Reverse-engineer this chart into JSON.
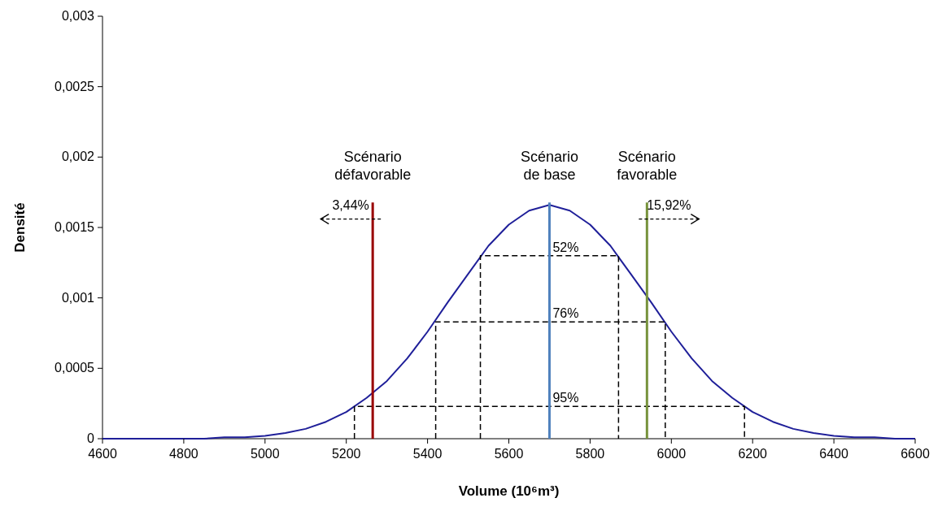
{
  "chart_data": {
    "type": "line",
    "xlabel": "Volume (10⁶m³)",
    "ylabel": "Densité",
    "xlim": [
      4600,
      6600
    ],
    "xticks": [
      4600,
      4800,
      5000,
      5200,
      5400,
      5600,
      5800,
      6000,
      6200,
      6400,
      6600
    ],
    "ylim": [
      0,
      0.003
    ],
    "yticks": [
      0,
      {
        "value": 0.0005,
        "label": "0,0005"
      },
      {
        "value": 0.001,
        "label": "0,001"
      },
      {
        "value": 0.0015,
        "label": "0,0015"
      },
      {
        "value": 0.002,
        "label": "0,002"
      },
      {
        "value": 0.0025,
        "label": "0,0025"
      },
      {
        "value": 0.003,
        "label": "0,003"
      }
    ],
    "grid": false,
    "marker": "none",
    "series": [
      {
        "color": "#1f1f99",
        "line_style": "solid",
        "x": [
          4600,
          4700,
          4800,
          4850,
          4900,
          4950,
          5000,
          5050,
          5100,
          5150,
          5200,
          5250,
          5300,
          5350,
          5400,
          5450,
          5500,
          5550,
          5600,
          5650,
          5700,
          5750,
          5800,
          5850,
          5900,
          5950,
          6000,
          6050,
          6100,
          6150,
          6200,
          6250,
          6300,
          6350,
          6400,
          6450,
          6500,
          6550,
          6600
        ],
        "values": [
          0,
          0,
          0,
          0,
          1e-05,
          1e-05,
          2e-05,
          4e-05,
          7e-05,
          0.00012,
          0.00019,
          0.00029,
          0.00041,
          0.00057,
          0.00076,
          0.00097,
          0.00117,
          0.00137,
          0.00152,
          0.00162,
          0.00166,
          0.00162,
          0.00152,
          0.00137,
          0.00117,
          0.00097,
          0.00076,
          0.00057,
          0.00041,
          0.00029,
          0.00019,
          0.00012,
          7e-05,
          4e-05,
          2e-05,
          1e-05,
          1e-05,
          0,
          0
        ]
      },
      {
        "color": "#000000",
        "line_style": "dashed",
        "x": [
          5530,
          5530,
          5870,
          5870
        ],
        "values": [
          0,
          0.0013,
          0.0013,
          0
        ]
      },
      {
        "color": "#000000",
        "line_style": "dashed",
        "x": [
          5420,
          5420,
          5985,
          5985
        ],
        "values": [
          0,
          0.00083,
          0.00083,
          0
        ]
      },
      {
        "color": "#000000",
        "line_style": "dashed",
        "x": [
          5220,
          5220,
          6180,
          6180
        ],
        "values": [
          0,
          0.00023,
          0.00023,
          0
        ]
      }
    ],
    "ref_lines": [
      {
        "axis": "x",
        "value": 5265,
        "label": "Scénario défavorable",
        "color": "#990000"
      },
      {
        "axis": "x",
        "value": 5700,
        "label": "Scénario de base",
        "color": "#4f81bd"
      },
      {
        "axis": "x",
        "value": 5940,
        "label": "Scénario favorable",
        "color": "#77933c"
      }
    ],
    "annotations": [
      {
        "text": "52%",
        "x": 5700,
        "y": 0.0013
      },
      {
        "text": "76%",
        "x": 5700,
        "y": 0.00083
      },
      {
        "text": "95%",
        "x": 5700,
        "y": 0.00023
      },
      {
        "text": "3,44%",
        "x": 5265,
        "y": 0.00156
      },
      {
        "text": "15,92%",
        "x": 5940,
        "y": 0.00156
      }
    ]
  }
}
